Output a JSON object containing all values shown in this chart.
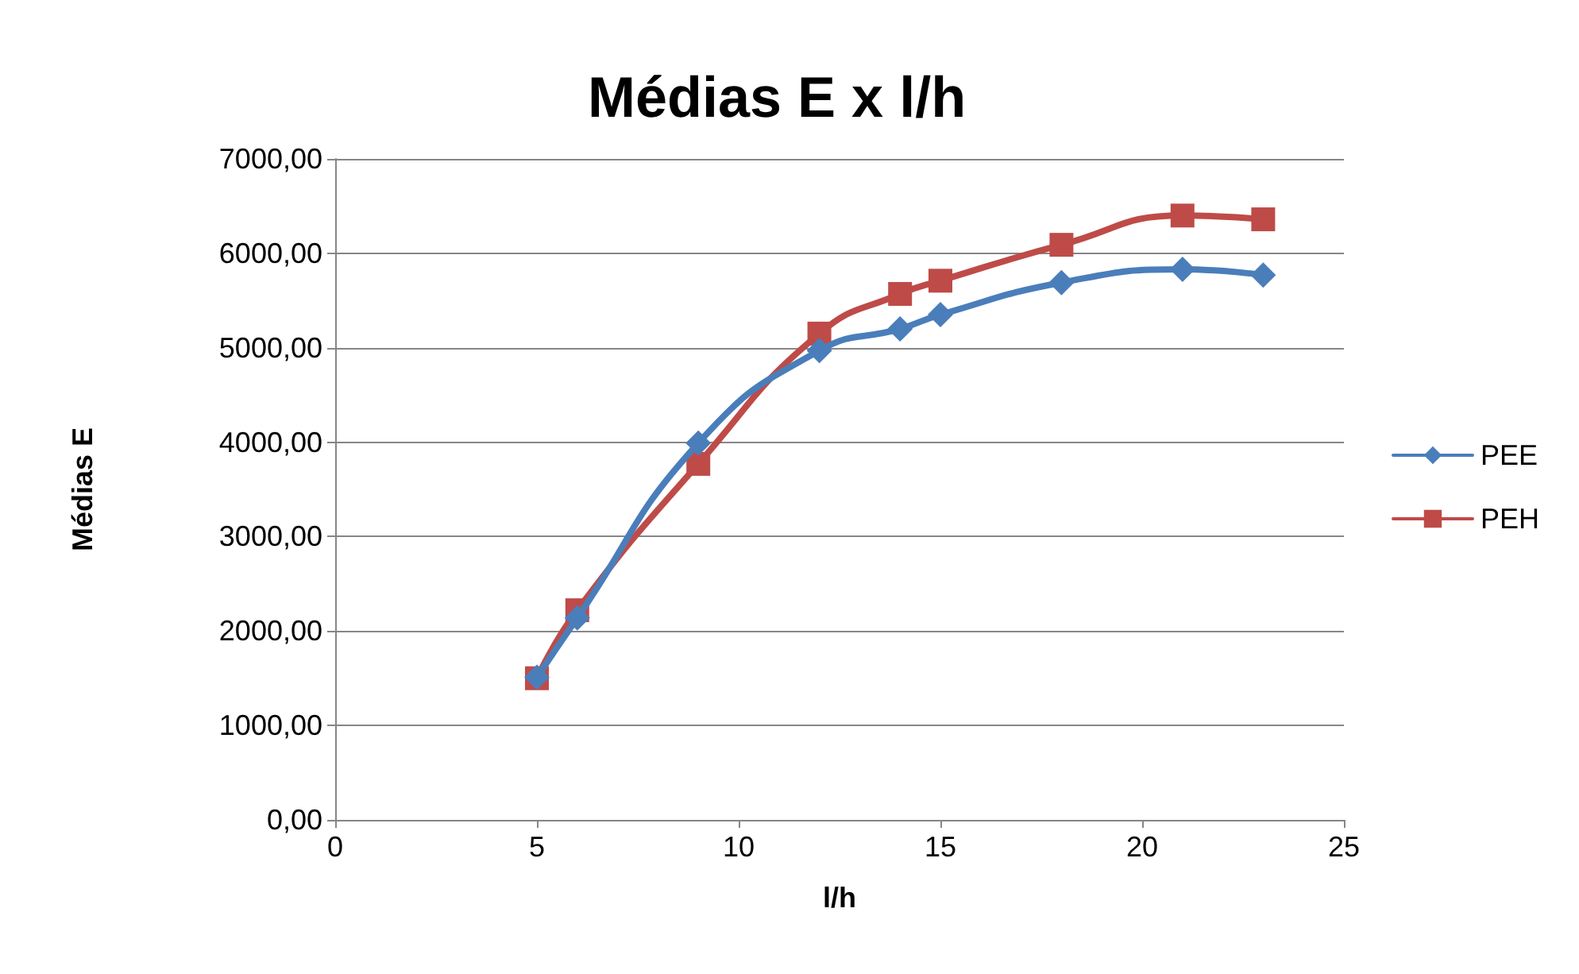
{
  "chart_data": {
    "type": "line",
    "title": "Médias E x l/h",
    "xlabel": "l/h",
    "ylabel": "Médias E",
    "x": [
      5,
      6,
      9,
      12,
      14,
      15,
      18,
      21,
      23
    ],
    "series": [
      {
        "name": "PEE",
        "color": "#4a7ebb",
        "marker": "diamond",
        "values": [
          1510,
          2140,
          3990,
          4970,
          5200,
          5350,
          5690,
          5830,
          5770
        ]
      },
      {
        "name": "PEH",
        "color": "#be4b48",
        "marker": "square",
        "values": [
          1500,
          2220,
          3770,
          5150,
          5570,
          5710,
          6090,
          6400,
          6360
        ]
      }
    ],
    "xlim": [
      0,
      25
    ],
    "xticks": [
      0,
      5,
      10,
      15,
      20,
      25
    ],
    "ylim": [
      0,
      7000
    ],
    "yticks": [
      {
        "value": 0,
        "label": "0,00"
      },
      {
        "value": 1000,
        "label": "1000,00"
      },
      {
        "value": 2000,
        "label": "2000,00"
      },
      {
        "value": 3000,
        "label": "3000,00"
      },
      {
        "value": 4000,
        "label": "4000,00"
      },
      {
        "value": 5000,
        "label": "5000,00"
      },
      {
        "value": 6000,
        "label": "6000,00"
      },
      {
        "value": 7000,
        "label": "7000,00"
      }
    ],
    "grid": "y",
    "legend": "right",
    "line_style": "solid"
  }
}
